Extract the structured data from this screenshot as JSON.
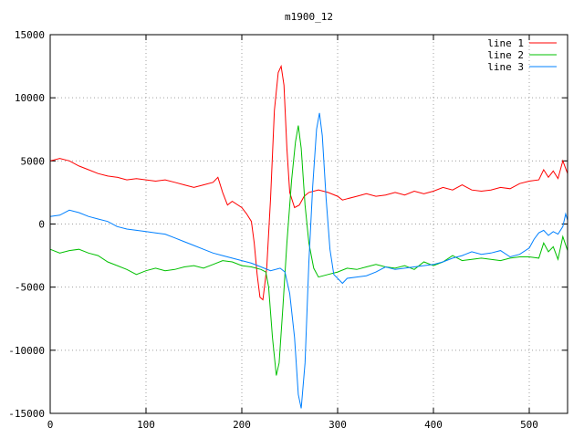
{
  "chart_data": {
    "type": "line",
    "title": "m1900_12",
    "xlabel": "",
    "ylabel": "",
    "xlim": [
      0,
      540
    ],
    "ylim": [
      -15000,
      15000
    ],
    "x_ticks": [
      0,
      100,
      200,
      300,
      400,
      500
    ],
    "y_ticks": [
      -15000,
      -10000,
      -5000,
      0,
      5000,
      10000,
      15000
    ],
    "grid": true,
    "legend_position": "top-right",
    "series": [
      {
        "name": "line 1",
        "color": "#ff0000",
        "points": [
          [
            0,
            5000
          ],
          [
            10,
            5200
          ],
          [
            20,
            5000
          ],
          [
            30,
            4600
          ],
          [
            40,
            4300
          ],
          [
            50,
            4000
          ],
          [
            60,
            3800
          ],
          [
            70,
            3700
          ],
          [
            80,
            3500
          ],
          [
            90,
            3600
          ],
          [
            100,
            3500
          ],
          [
            110,
            3400
          ],
          [
            120,
            3500
          ],
          [
            130,
            3300
          ],
          [
            140,
            3100
          ],
          [
            150,
            2900
          ],
          [
            160,
            3100
          ],
          [
            170,
            3300
          ],
          [
            175,
            3700
          ],
          [
            180,
            2500
          ],
          [
            185,
            1500
          ],
          [
            190,
            1800
          ],
          [
            200,
            1300
          ],
          [
            205,
            800
          ],
          [
            210,
            200
          ],
          [
            213,
            -1500
          ],
          [
            216,
            -4000
          ],
          [
            219,
            -5800
          ],
          [
            222,
            -6000
          ],
          [
            226,
            -3500
          ],
          [
            230,
            2000
          ],
          [
            234,
            9000
          ],
          [
            238,
            12000
          ],
          [
            241,
            12500
          ],
          [
            244,
            11000
          ],
          [
            247,
            6000
          ],
          [
            250,
            2500
          ],
          [
            255,
            1300
          ],
          [
            260,
            1500
          ],
          [
            265,
            2200
          ],
          [
            270,
            2500
          ],
          [
            280,
            2700
          ],
          [
            290,
            2500
          ],
          [
            300,
            2200
          ],
          [
            305,
            1900
          ],
          [
            310,
            2000
          ],
          [
            320,
            2200
          ],
          [
            330,
            2400
          ],
          [
            340,
            2200
          ],
          [
            350,
            2300
          ],
          [
            360,
            2500
          ],
          [
            370,
            2300
          ],
          [
            380,
            2600
          ],
          [
            390,
            2400
          ],
          [
            400,
            2600
          ],
          [
            410,
            2900
          ],
          [
            420,
            2700
          ],
          [
            430,
            3100
          ],
          [
            440,
            2700
          ],
          [
            450,
            2600
          ],
          [
            460,
            2700
          ],
          [
            470,
            2900
          ],
          [
            480,
            2800
          ],
          [
            490,
            3200
          ],
          [
            500,
            3400
          ],
          [
            510,
            3500
          ],
          [
            515,
            4300
          ],
          [
            520,
            3700
          ],
          [
            525,
            4200
          ],
          [
            530,
            3600
          ],
          [
            535,
            5000
          ],
          [
            540,
            4000
          ]
        ]
      },
      {
        "name": "line 2",
        "color": "#00c000",
        "points": [
          [
            0,
            -2000
          ],
          [
            10,
            -2300
          ],
          [
            20,
            -2100
          ],
          [
            30,
            -2000
          ],
          [
            40,
            -2300
          ],
          [
            50,
            -2500
          ],
          [
            60,
            -3000
          ],
          [
            70,
            -3300
          ],
          [
            80,
            -3600
          ],
          [
            90,
            -4000
          ],
          [
            100,
            -3700
          ],
          [
            110,
            -3500
          ],
          [
            120,
            -3700
          ],
          [
            130,
            -3600
          ],
          [
            140,
            -3400
          ],
          [
            150,
            -3300
          ],
          [
            160,
            -3500
          ],
          [
            170,
            -3200
          ],
          [
            180,
            -2900
          ],
          [
            190,
            -3000
          ],
          [
            200,
            -3300
          ],
          [
            210,
            -3400
          ],
          [
            220,
            -3600
          ],
          [
            225,
            -3800
          ],
          [
            228,
            -5000
          ],
          [
            232,
            -9000
          ],
          [
            236,
            -12000
          ],
          [
            239,
            -11000
          ],
          [
            243,
            -6500
          ],
          [
            247,
            -1500
          ],
          [
            252,
            3500
          ],
          [
            256,
            6500
          ],
          [
            259,
            7800
          ],
          [
            262,
            6000
          ],
          [
            266,
            1500
          ],
          [
            270,
            -1500
          ],
          [
            275,
            -3500
          ],
          [
            280,
            -4200
          ],
          [
            290,
            -4000
          ],
          [
            300,
            -3800
          ],
          [
            310,
            -3500
          ],
          [
            320,
            -3600
          ],
          [
            330,
            -3400
          ],
          [
            340,
            -3200
          ],
          [
            350,
            -3400
          ],
          [
            360,
            -3500
          ],
          [
            370,
            -3300
          ],
          [
            380,
            -3600
          ],
          [
            390,
            -3000
          ],
          [
            400,
            -3300
          ],
          [
            410,
            -3000
          ],
          [
            420,
            -2500
          ],
          [
            430,
            -2900
          ],
          [
            440,
            -2800
          ],
          [
            450,
            -2700
          ],
          [
            460,
            -2800
          ],
          [
            470,
            -2900
          ],
          [
            480,
            -2700
          ],
          [
            490,
            -2600
          ],
          [
            500,
            -2600
          ],
          [
            510,
            -2700
          ],
          [
            515,
            -1500
          ],
          [
            520,
            -2200
          ],
          [
            525,
            -1800
          ],
          [
            530,
            -2800
          ],
          [
            535,
            -1000
          ],
          [
            540,
            -2100
          ]
        ]
      },
      {
        "name": "line 3",
        "color": "#0080ff",
        "points": [
          [
            0,
            600
          ],
          [
            10,
            700
          ],
          [
            20,
            1100
          ],
          [
            30,
            900
          ],
          [
            40,
            600
          ],
          [
            50,
            400
          ],
          [
            60,
            200
          ],
          [
            70,
            -200
          ],
          [
            80,
            -400
          ],
          [
            90,
            -500
          ],
          [
            100,
            -600
          ],
          [
            110,
            -700
          ],
          [
            120,
            -800
          ],
          [
            130,
            -1100
          ],
          [
            140,
            -1400
          ],
          [
            150,
            -1700
          ],
          [
            160,
            -2000
          ],
          [
            170,
            -2300
          ],
          [
            180,
            -2500
          ],
          [
            190,
            -2700
          ],
          [
            200,
            -2900
          ],
          [
            210,
            -3100
          ],
          [
            220,
            -3400
          ],
          [
            230,
            -3700
          ],
          [
            240,
            -3500
          ],
          [
            245,
            -3800
          ],
          [
            250,
            -5500
          ],
          [
            255,
            -9000
          ],
          [
            259,
            -13500
          ],
          [
            262,
            -14600
          ],
          [
            266,
            -11000
          ],
          [
            270,
            -3000
          ],
          [
            274,
            3000
          ],
          [
            278,
            7500
          ],
          [
            281,
            8800
          ],
          [
            284,
            7000
          ],
          [
            288,
            2000
          ],
          [
            292,
            -2000
          ],
          [
            296,
            -4000
          ],
          [
            300,
            -4300
          ],
          [
            305,
            -4700
          ],
          [
            310,
            -4300
          ],
          [
            320,
            -4200
          ],
          [
            330,
            -4100
          ],
          [
            340,
            -3800
          ],
          [
            350,
            -3400
          ],
          [
            360,
            -3600
          ],
          [
            370,
            -3500
          ],
          [
            380,
            -3400
          ],
          [
            390,
            -3300
          ],
          [
            400,
            -3200
          ],
          [
            410,
            -3000
          ],
          [
            420,
            -2700
          ],
          [
            430,
            -2500
          ],
          [
            440,
            -2200
          ],
          [
            450,
            -2400
          ],
          [
            460,
            -2300
          ],
          [
            470,
            -2100
          ],
          [
            480,
            -2600
          ],
          [
            490,
            -2400
          ],
          [
            500,
            -1900
          ],
          [
            505,
            -1200
          ],
          [
            510,
            -700
          ],
          [
            515,
            -500
          ],
          [
            520,
            -900
          ],
          [
            525,
            -600
          ],
          [
            530,
            -800
          ],
          [
            535,
            -200
          ],
          [
            538,
            800
          ],
          [
            540,
            300
          ]
        ]
      }
    ]
  }
}
